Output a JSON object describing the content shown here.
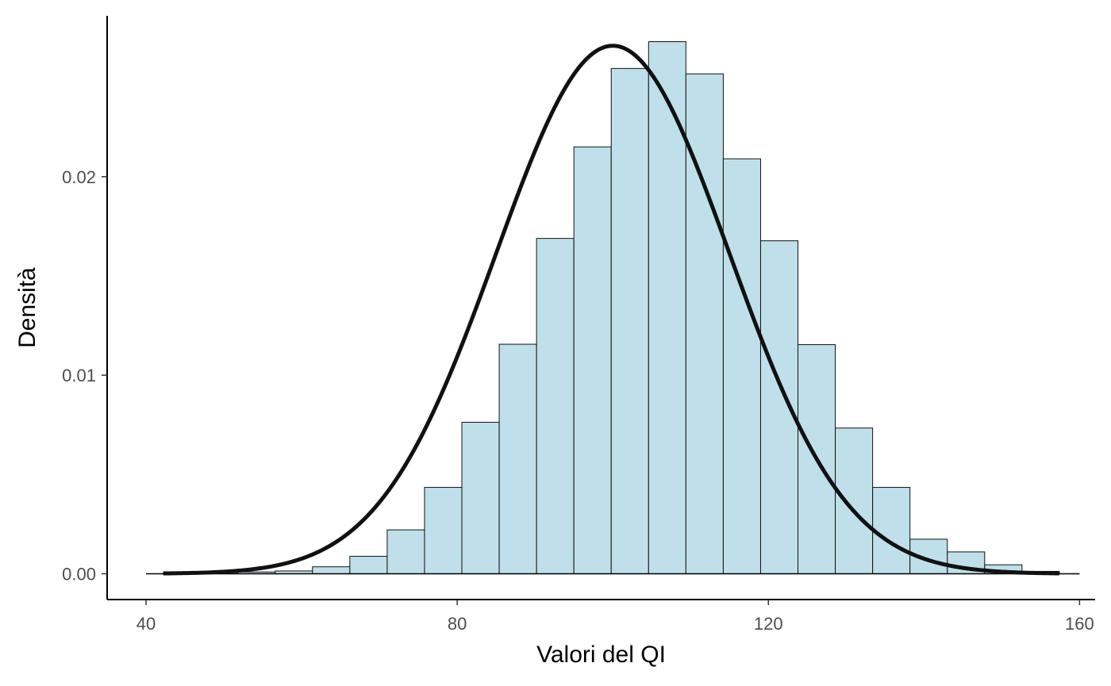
{
  "chart_data": {
    "type": "bar",
    "title": "",
    "xlabel": "Valori del QI",
    "ylabel": "Densità",
    "xlim": [
      35,
      162
    ],
    "ylim": [
      -0.0013,
      0.0281
    ],
    "x_ticks": [
      40,
      80,
      120,
      160
    ],
    "x_tick_labels": [
      "40",
      "80",
      "120",
      "160"
    ],
    "y_ticks": [
      0,
      0.01,
      0.02
    ],
    "y_tick_labels": [
      "0.00",
      "0.01",
      "0.02"
    ],
    "grid": false,
    "legend": "none",
    "histogram": {
      "bin_edges": [
        42.2,
        47.0,
        51.8,
        56.6,
        61.4,
        66.2,
        71.0,
        75.8,
        80.6,
        85.4,
        90.2,
        95.0,
        99.8,
        104.6,
        109.4,
        114.2,
        119.0,
        123.8,
        128.6,
        133.4,
        138.2,
        143.0,
        147.8,
        152.6,
        157.4
      ],
      "densities": [
        3e-05,
        6e-05,
        9e-05,
        0.00014,
        0.00035,
        0.00088,
        0.00221,
        0.00435,
        0.00763,
        0.01156,
        0.01689,
        0.0215,
        0.02545,
        0.0268,
        0.02518,
        0.0209,
        0.01677,
        0.01154,
        0.00734,
        0.00435,
        0.00174,
        0.0011,
        0.00045,
        0.00012
      ],
      "fill": "#bfe0ea",
      "stroke": "#111111"
    },
    "density_curve": {
      "mean": 100,
      "sd": 15,
      "x_range": [
        42.2,
        157.4
      ],
      "color": "#111111"
    },
    "baseline": {
      "x_range": [
        40,
        160
      ],
      "y": 0
    }
  }
}
